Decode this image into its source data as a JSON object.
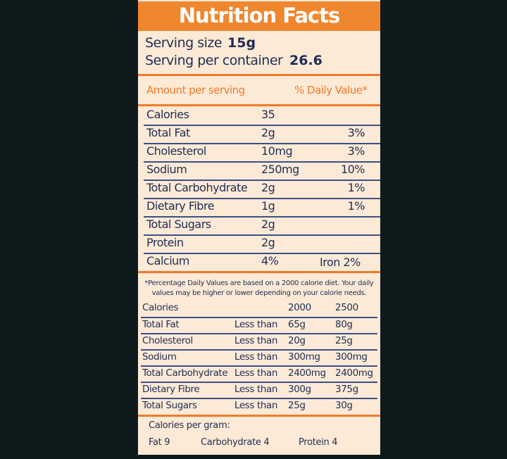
{
  "header": {
    "title": "Nutrition Facts"
  },
  "serving": {
    "size_label": "Serving size",
    "size": "15g",
    "per_container_label": "Serving per container",
    "per_container": "26.6"
  },
  "amount_header": {
    "left": "Amount per serving",
    "right": "% Daily Value*"
  },
  "nutrients": {
    "rows": [
      {
        "name": "Calories",
        "amount": "35"
      },
      {
        "name": "Total Fat",
        "amount": "2g",
        "dv": "3%"
      },
      {
        "name": "Cholesterol",
        "amount": "10mg",
        "dv": "3%"
      },
      {
        "name": "Sodium",
        "amount": "250mg",
        "dv": "10%"
      },
      {
        "name": "Total Carbohydrate",
        "amount": "2g",
        "dv": "1%"
      },
      {
        "name": "Dietary Fibre",
        "amount": "1g",
        "dv": "1%"
      },
      {
        "name": "Total Sugars",
        "amount": "2g"
      },
      {
        "name": "Protein",
        "amount": "2g"
      },
      {
        "name": "Calcium",
        "amount": "4%",
        "extra": "Iron 2%"
      }
    ]
  },
  "footnote": "*Percentage Daily Values are based on a 2000 calorie diet. Your daily values may be higher or lower depending on your calorie needs.",
  "table": {
    "header": [
      "Calories",
      "2000",
      "2500"
    ],
    "rows": [
      [
        "Total Fat",
        "Less than",
        "65g",
        "80g"
      ],
      [
        "Cholesterol",
        "Less than",
        "20g",
        "25g"
      ],
      [
        "Sodium",
        "Less than",
        "300mg",
        "300mg"
      ],
      [
        "Total Carbohydrate",
        "Less than",
        "2400mg",
        "2400mg"
      ],
      [
        "Dietary Fibre",
        "Less than",
        "300g",
        "375g"
      ],
      [
        "Total Sugars",
        "Less than",
        "25g",
        "30g"
      ]
    ]
  },
  "per_gram": {
    "title": "Calories per gram:",
    "items": [
      "Fat 9",
      "Carbohydrate 4",
      "Protein 4"
    ]
  }
}
